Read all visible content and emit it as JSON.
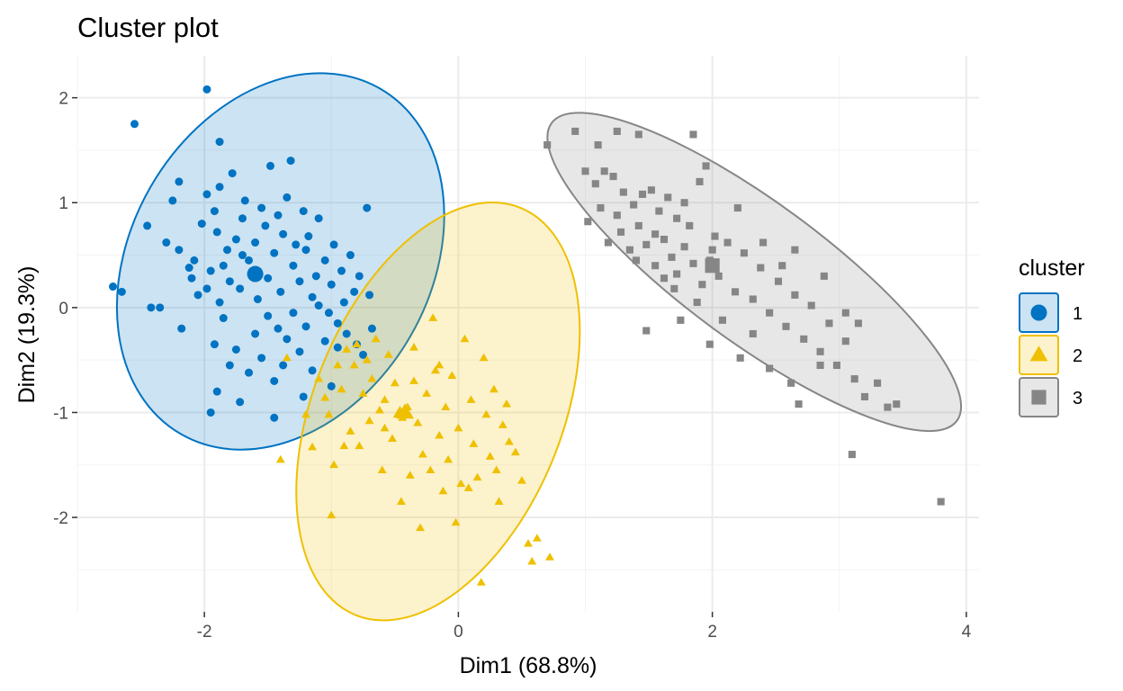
{
  "chart_data": {
    "type": "scatter",
    "title": "Cluster plot",
    "xlabel": "Dim1 (68.8%)",
    "ylabel": "Dim2 (19.3%)",
    "xlim": [
      -3.0,
      4.1
    ],
    "ylim": [
      -2.9,
      2.4
    ],
    "x_ticks": [
      -2,
      0,
      2,
      4
    ],
    "y_ticks": [
      2,
      1,
      0,
      -1,
      -2
    ],
    "x_tick_labels": [
      "-2",
      "0",
      "2",
      "4"
    ],
    "y_tick_labels": [
      "2",
      "1",
      "0",
      "-1",
      "-2"
    ],
    "grid": true,
    "legend": {
      "title": "cluster",
      "position": "right",
      "entries": [
        {
          "label": "1",
          "shape": "circle",
          "color": "#0073C2"
        },
        {
          "label": "2",
          "shape": "triangle",
          "color": "#EFC000"
        },
        {
          "label": "3",
          "shape": "square",
          "color": "#868686"
        }
      ]
    },
    "clusters": [
      {
        "name": "1",
        "color": "#0073C2",
        "shape": "circle",
        "center": [
          -1.6,
          0.32
        ],
        "ellipse": {
          "cx": -1.4,
          "cy": 0.44,
          "rx": 1.18,
          "ry": 1.57,
          "angle_deg": 30
        },
        "points": [
          [
            -1.98,
            2.08
          ],
          [
            -2.55,
            1.75
          ],
          [
            -1.88,
            1.58
          ],
          [
            -2.72,
            0.2
          ],
          [
            -2.65,
            0.15
          ],
          [
            -2.45,
            0.78
          ],
          [
            -2.42,
            0.0
          ],
          [
            -2.3,
            0.62
          ],
          [
            -2.2,
            0.55
          ],
          [
            -2.25,
            1.02
          ],
          [
            -2.2,
            1.2
          ],
          [
            -2.1,
            0.28
          ],
          [
            -2.08,
            0.45
          ],
          [
            -2.05,
            0.12
          ],
          [
            -2.02,
            0.8
          ],
          [
            -1.98,
            1.08
          ],
          [
            -1.95,
            0.35
          ],
          [
            -1.92,
            0.92
          ],
          [
            -1.9,
            0.72
          ],
          [
            -1.88,
            1.15
          ],
          [
            -1.85,
            0.4
          ],
          [
            -1.82,
            0.55
          ],
          [
            -1.8,
            0.25
          ],
          [
            -1.78,
            1.28
          ],
          [
            -1.75,
            0.65
          ],
          [
            -1.72,
            0.18
          ],
          [
            -1.7,
            0.85
          ],
          [
            -1.68,
            1.02
          ],
          [
            -1.65,
            0.45
          ],
          [
            -1.62,
            0.3
          ],
          [
            -1.6,
            0.62
          ],
          [
            -1.58,
            0.08
          ],
          [
            -1.55,
            0.95
          ],
          [
            -1.52,
            0.78
          ],
          [
            -1.5,
            0.28
          ],
          [
            -1.48,
            1.35
          ],
          [
            -1.45,
            0.52
          ],
          [
            -1.42,
            0.88
          ],
          [
            -1.4,
            0.15
          ],
          [
            -1.38,
            0.7
          ],
          [
            -1.35,
            1.05
          ],
          [
            -1.32,
            1.4
          ],
          [
            -1.3,
            0.4
          ],
          [
            -1.28,
            0.6
          ],
          [
            -1.25,
            0.25
          ],
          [
            -1.22,
            0.92
          ],
          [
            -1.2,
            0.55
          ],
          [
            -1.18,
            0.68
          ],
          [
            -1.15,
            0.1
          ],
          [
            -1.12,
            0.3
          ],
          [
            -1.1,
            0.85
          ],
          [
            -1.05,
            0.45
          ],
          [
            -1.02,
            -0.05
          ],
          [
            -1.0,
            0.22
          ],
          [
            -0.98,
            0.6
          ],
          [
            -0.95,
            -0.15
          ],
          [
            -0.92,
            0.35
          ],
          [
            -0.9,
            0.05
          ],
          [
            -0.88,
            -0.25
          ],
          [
            -0.85,
            0.5
          ],
          [
            -0.82,
            0.15
          ],
          [
            -0.8,
            -0.35
          ],
          [
            -0.78,
            0.3
          ],
          [
            -0.75,
            -0.45
          ],
          [
            -0.72,
            0.95
          ],
          [
            -0.7,
            0.12
          ],
          [
            -0.68,
            -0.2
          ],
          [
            -1.95,
            -1.0
          ],
          [
            -1.92,
            -0.35
          ],
          [
            -1.9,
            -0.8
          ],
          [
            -1.85,
            -0.1
          ],
          [
            -1.8,
            -0.55
          ],
          [
            -1.75,
            -0.4
          ],
          [
            -1.72,
            -0.9
          ],
          [
            -1.65,
            -0.62
          ],
          [
            -1.6,
            -0.25
          ],
          [
            -1.55,
            -0.48
          ],
          [
            -1.5,
            -0.08
          ],
          [
            -1.45,
            -0.7
          ],
          [
            -1.42,
            -0.2
          ],
          [
            -1.38,
            -0.55
          ],
          [
            -1.35,
            -0.3
          ],
          [
            -1.3,
            -0.05
          ],
          [
            -1.25,
            -0.42
          ],
          [
            -1.2,
            -0.18
          ],
          [
            -1.15,
            -0.6
          ],
          [
            -1.1,
            0.02
          ],
          [
            -1.05,
            -0.32
          ],
          [
            -1.0,
            -0.75
          ],
          [
            -0.95,
            -0.38
          ],
          [
            -1.45,
            -1.05
          ],
          [
            -1.22,
            -0.85
          ],
          [
            -2.35,
            0.0
          ],
          [
            -2.18,
            -0.2
          ],
          [
            -2.12,
            0.38
          ],
          [
            -1.98,
            0.18
          ],
          [
            -1.88,
            0.05
          ],
          [
            -1.7,
            0.5
          ]
        ]
      },
      {
        "name": "2",
        "color": "#EFC000",
        "shape": "triangle",
        "center": [
          -0.42,
          -1.0
        ],
        "ellipse": {
          "cx": -0.16,
          "cy": -0.99,
          "rx": 0.98,
          "ry": 1.73,
          "angle_deg": 22
        },
        "points": [
          [
            -1.4,
            -1.45
          ],
          [
            -1.35,
            -0.48
          ],
          [
            -1.2,
            -1.02
          ],
          [
            -1.15,
            -1.33
          ],
          [
            -1.1,
            -0.68
          ],
          [
            -1.05,
            -0.86
          ],
          [
            -1.02,
            -1.02
          ],
          [
            -1.0,
            -1.98
          ],
          [
            -0.98,
            -1.5
          ],
          [
            -0.95,
            -0.55
          ],
          [
            -0.92,
            -0.78
          ],
          [
            -0.88,
            -0.4
          ],
          [
            -0.85,
            -1.18
          ],
          [
            -0.82,
            -0.55
          ],
          [
            -0.8,
            -0.35
          ],
          [
            -0.78,
            -1.32
          ],
          [
            -0.75,
            -0.82
          ],
          [
            -0.72,
            -0.5
          ],
          [
            -0.7,
            -1.08
          ],
          [
            -0.68,
            -0.68
          ],
          [
            -0.65,
            -0.3
          ],
          [
            -0.62,
            -0.98
          ],
          [
            -0.6,
            -1.55
          ],
          [
            -0.58,
            -0.88
          ],
          [
            -0.55,
            -0.45
          ],
          [
            -0.52,
            -1.25
          ],
          [
            -0.5,
            -0.72
          ],
          [
            -0.48,
            -1.02
          ],
          [
            -0.46,
            -0.98
          ],
          [
            -0.44,
            -1.05
          ],
          [
            -0.42,
            -1.0
          ],
          [
            -0.4,
            -0.95
          ],
          [
            -0.38,
            -1.6
          ],
          [
            -0.35,
            -0.38
          ],
          [
            -0.32,
            -1.1
          ],
          [
            -0.3,
            -2.1
          ],
          [
            -0.28,
            -1.4
          ],
          [
            -0.25,
            -0.82
          ],
          [
            -0.22,
            -1.55
          ],
          [
            -0.2,
            -0.1
          ],
          [
            -0.18,
            -0.6
          ],
          [
            -0.15,
            -1.22
          ],
          [
            -0.12,
            -1.75
          ],
          [
            -0.1,
            -0.95
          ],
          [
            -0.08,
            -1.45
          ],
          [
            -0.05,
            -0.65
          ],
          [
            -0.02,
            -2.05
          ],
          [
            0.0,
            -1.15
          ],
          [
            0.02,
            -1.68
          ],
          [
            0.05,
            -0.3
          ],
          [
            0.08,
            -1.72
          ],
          [
            0.1,
            -0.88
          ],
          [
            0.12,
            -1.3
          ],
          [
            0.15,
            -1.62
          ],
          [
            0.18,
            -2.62
          ],
          [
            0.2,
            -0.48
          ],
          [
            0.22,
            -1.02
          ],
          [
            0.25,
            -1.42
          ],
          [
            0.28,
            -0.78
          ],
          [
            0.3,
            -1.55
          ],
          [
            0.32,
            -1.85
          ],
          [
            0.35,
            -1.12
          ],
          [
            0.38,
            -0.92
          ],
          [
            0.4,
            -1.28
          ],
          [
            0.45,
            -1.38
          ],
          [
            0.5,
            -1.65
          ],
          [
            0.55,
            -2.25
          ],
          [
            0.58,
            -2.42
          ],
          [
            0.62,
            -2.2
          ],
          [
            0.72,
            -2.38
          ],
          [
            -0.45,
            -1.85
          ],
          [
            -0.9,
            -1.32
          ],
          [
            -0.58,
            -1.15
          ],
          [
            -0.35,
            -0.7
          ],
          [
            -0.15,
            -0.55
          ]
        ]
      },
      {
        "name": "3",
        "color": "#868686",
        "shape": "square",
        "center": [
          2.0,
          0.4
        ],
        "ellipse": {
          "cx": 2.33,
          "cy": 0.34,
          "rx": 1.98,
          "ry": 0.55,
          "angle_deg": 36.3
        },
        "points": [
          [
            0.7,
            1.55
          ],
          [
            0.92,
            1.68
          ],
          [
            1.1,
            1.55
          ],
          [
            1.25,
            1.68
          ],
          [
            1.42,
            1.65
          ],
          [
            1.85,
            1.65
          ],
          [
            1.0,
            1.3
          ],
          [
            1.08,
            1.18
          ],
          [
            1.15,
            1.3
          ],
          [
            1.22,
            1.25
          ],
          [
            1.3,
            1.1
          ],
          [
            1.38,
            0.98
          ],
          [
            1.45,
            1.08
          ],
          [
            1.52,
            1.12
          ],
          [
            1.58,
            0.92
          ],
          [
            1.65,
            1.05
          ],
          [
            1.72,
            0.85
          ],
          [
            1.78,
            1.0
          ],
          [
            1.82,
            0.78
          ],
          [
            1.9,
            1.2
          ],
          [
            1.95,
            1.35
          ],
          [
            2.02,
            0.68
          ],
          [
            1.02,
            0.82
          ],
          [
            1.12,
            0.95
          ],
          [
            1.18,
            0.62
          ],
          [
            1.28,
            0.72
          ],
          [
            1.35,
            0.55
          ],
          [
            1.42,
            0.78
          ],
          [
            1.48,
            0.6
          ],
          [
            1.55,
            0.4
          ],
          [
            1.62,
            0.65
          ],
          [
            1.68,
            0.48
          ],
          [
            1.72,
            0.32
          ],
          [
            1.78,
            0.58
          ],
          [
            1.85,
            0.42
          ],
          [
            1.92,
            0.22
          ],
          [
            1.98,
            0.45
          ],
          [
            2.05,
            0.3
          ],
          [
            2.12,
            0.62
          ],
          [
            2.18,
            0.15
          ],
          [
            2.25,
            0.52
          ],
          [
            2.32,
            0.08
          ],
          [
            2.38,
            0.38
          ],
          [
            2.45,
            -0.05
          ],
          [
            2.52,
            0.25
          ],
          [
            2.58,
            -0.18
          ],
          [
            2.65,
            0.12
          ],
          [
            2.72,
            -0.3
          ],
          [
            2.78,
            0.02
          ],
          [
            2.85,
            -0.42
          ],
          [
            2.92,
            -0.15
          ],
          [
            2.98,
            -0.55
          ],
          [
            3.05,
            -0.32
          ],
          [
            3.12,
            -0.68
          ],
          [
            3.2,
            -0.85
          ],
          [
            3.3,
            -0.72
          ],
          [
            3.38,
            -0.95
          ],
          [
            3.45,
            -0.92
          ],
          [
            3.1,
            -1.4
          ],
          [
            3.8,
            -1.85
          ],
          [
            1.48,
            -0.22
          ],
          [
            1.75,
            -0.12
          ],
          [
            1.98,
            -0.35
          ],
          [
            2.22,
            -0.48
          ],
          [
            2.45,
            -0.58
          ],
          [
            2.68,
            -0.92
          ],
          [
            2.85,
            -0.55
          ],
          [
            2.62,
            -0.72
          ],
          [
            2.55,
            0.4
          ],
          [
            2.4,
            0.62
          ],
          [
            2.65,
            0.55
          ],
          [
            2.88,
            0.3
          ],
          [
            3.05,
            -0.05
          ],
          [
            3.15,
            -0.15
          ],
          [
            2.2,
            0.95
          ],
          [
            1.62,
            0.28
          ],
          [
            1.88,
            0.05
          ],
          [
            2.08,
            -0.12
          ],
          [
            2.32,
            -0.25
          ],
          [
            1.4,
            0.45
          ],
          [
            1.25,
            0.88
          ],
          [
            1.55,
            0.7
          ],
          [
            1.7,
            0.18
          ],
          [
            2.0,
            0.55
          ]
        ]
      }
    ]
  }
}
